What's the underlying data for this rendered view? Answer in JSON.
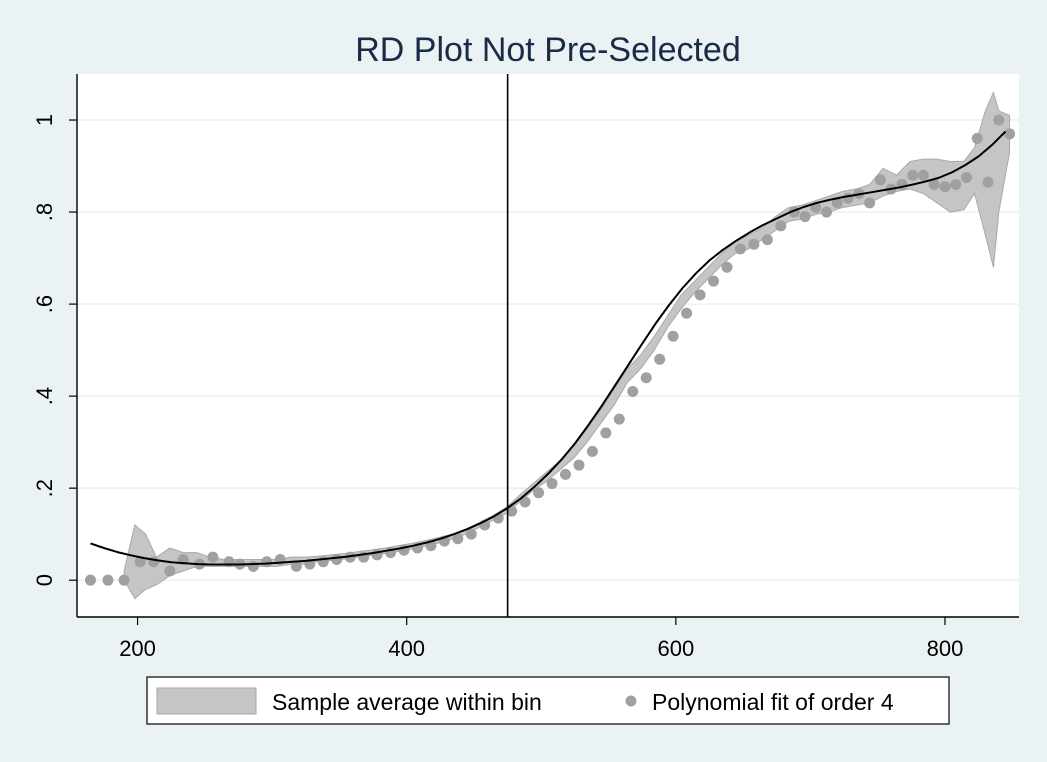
{
  "chart_data": {
    "type": "scatter",
    "title": "RD Plot Not Pre-Selected",
    "xlabel": "",
    "ylabel": "",
    "xlim": [
      155,
      855
    ],
    "ylim": [
      -0.08,
      1.1
    ],
    "x_ticks": [
      200,
      400,
      600,
      800
    ],
    "x_tick_labels": [
      "200",
      "400",
      "600",
      "800"
    ],
    "y_ticks": [
      0,
      0.2,
      0.4,
      0.6,
      0.8,
      1
    ],
    "y_tick_labels": [
      "0",
      ".2",
      ".4",
      ".6",
      ".8",
      "1"
    ],
    "grid": true,
    "cutoff_x": 475,
    "legend": {
      "placement": "bottom",
      "entries": [
        "Sample average within bin",
        "Polynomial fit of order 4"
      ]
    },
    "series": [
      {
        "name": "Sample average within bin",
        "kind": "points",
        "x": [
          165,
          178,
          190,
          202,
          212,
          224,
          234,
          246,
          256,
          268,
          276,
          286,
          296,
          306,
          318,
          328,
          338,
          348,
          358,
          368,
          378,
          388,
          398,
          408,
          418,
          428,
          438,
          448,
          458,
          468,
          478,
          488,
          498,
          508,
          518,
          528,
          538,
          548,
          558,
          568,
          578,
          588,
          598,
          608,
          618,
          628,
          638,
          648,
          658,
          668,
          678,
          688,
          696,
          704,
          712,
          720,
          728,
          736,
          744,
          752,
          760,
          768,
          776,
          784,
          792,
          800,
          808,
          816,
          824,
          832,
          840,
          848
        ],
        "y": [
          0.0,
          0.0,
          0.0,
          0.04,
          0.04,
          0.02,
          0.045,
          0.035,
          0.05,
          0.04,
          0.035,
          0.03,
          0.04,
          0.045,
          0.03,
          0.035,
          0.04,
          0.045,
          0.05,
          0.05,
          0.055,
          0.06,
          0.065,
          0.07,
          0.075,
          0.085,
          0.09,
          0.1,
          0.12,
          0.135,
          0.15,
          0.17,
          0.19,
          0.21,
          0.23,
          0.25,
          0.28,
          0.32,
          0.35,
          0.41,
          0.44,
          0.48,
          0.53,
          0.58,
          0.62,
          0.65,
          0.68,
          0.72,
          0.73,
          0.74,
          0.77,
          0.8,
          0.79,
          0.81,
          0.8,
          0.82,
          0.83,
          0.84,
          0.82,
          0.87,
          0.85,
          0.86,
          0.88,
          0.88,
          0.86,
          0.855,
          0.86,
          0.875,
          0.96,
          0.865,
          1.0,
          0.97
        ]
      },
      {
        "name": "Polynomial fit of order 4",
        "kind": "line",
        "x": [
          165,
          175,
          185,
          195,
          205,
          215,
          225,
          235,
          245,
          255,
          265,
          275,
          285,
          295,
          305,
          315,
          325,
          335,
          345,
          355,
          365,
          375,
          385,
          395,
          405,
          415,
          425,
          435,
          445,
          455,
          465,
          475,
          485,
          495,
          505,
          515,
          525,
          535,
          545,
          555,
          565,
          575,
          585,
          595,
          605,
          615,
          625,
          635,
          645,
          655,
          665,
          675,
          685,
          695,
          705,
          715,
          725,
          735,
          745,
          755,
          765,
          775,
          785,
          795,
          805,
          815,
          825,
          835,
          845
        ],
        "y": [
          0.08,
          0.07,
          0.061,
          0.054,
          0.048,
          0.043,
          0.039,
          0.037,
          0.035,
          0.034,
          0.034,
          0.034,
          0.035,
          0.036,
          0.038,
          0.04,
          0.042,
          0.045,
          0.048,
          0.051,
          0.055,
          0.059,
          0.064,
          0.069,
          0.075,
          0.082,
          0.09,
          0.1,
          0.111,
          0.124,
          0.139,
          0.157,
          0.178,
          0.203,
          0.231,
          0.262,
          0.297,
          0.337,
          0.379,
          0.424,
          0.469,
          0.514,
          0.558,
          0.598,
          0.635,
          0.667,
          0.695,
          0.718,
          0.738,
          0.756,
          0.772,
          0.786,
          0.8,
          0.811,
          0.82,
          0.827,
          0.833,
          0.838,
          0.843,
          0.848,
          0.853,
          0.859,
          0.866,
          0.874,
          0.886,
          0.902,
          0.921,
          0.946,
          0.975
        ]
      },
      {
        "name": "Sample average within bin",
        "kind": "band",
        "x": [
          190,
          198,
          206,
          214,
          224,
          234,
          244,
          254,
          264,
          274,
          284,
          294,
          304,
          314,
          324,
          334,
          344,
          354,
          364,
          374,
          384,
          394,
          404,
          414,
          424,
          434,
          444,
          454,
          464,
          474,
          484,
          494,
          504,
          514,
          524,
          534,
          544,
          554,
          564,
          574,
          584,
          594,
          604,
          614,
          624,
          634,
          644,
          654,
          664,
          674,
          684,
          694,
          704,
          714,
          724,
          734,
          744,
          754,
          764,
          774,
          784,
          794,
          804,
          814,
          822,
          830,
          836,
          840,
          848
        ],
        "lower": [
          0.0,
          -0.04,
          -0.02,
          -0.01,
          0.01,
          0.02,
          0.03,
          0.03,
          0.03,
          0.03,
          0.03,
          0.03,
          0.03,
          0.035,
          0.035,
          0.04,
          0.043,
          0.046,
          0.05,
          0.054,
          0.058,
          0.063,
          0.068,
          0.074,
          0.081,
          0.09,
          0.1,
          0.115,
          0.13,
          0.145,
          0.17,
          0.195,
          0.215,
          0.24,
          0.265,
          0.3,
          0.34,
          0.38,
          0.43,
          0.46,
          0.5,
          0.55,
          0.59,
          0.625,
          0.655,
          0.685,
          0.71,
          0.72,
          0.74,
          0.76,
          0.78,
          0.785,
          0.795,
          0.8,
          0.81,
          0.815,
          0.82,
          0.835,
          0.845,
          0.85,
          0.84,
          0.82,
          0.8,
          0.805,
          0.84,
          0.75,
          0.68,
          0.8,
          0.93
        ],
        "upper": [
          0.02,
          0.12,
          0.1,
          0.05,
          0.07,
          0.06,
          0.06,
          0.05,
          0.045,
          0.045,
          0.045,
          0.045,
          0.045,
          0.05,
          0.05,
          0.052,
          0.055,
          0.058,
          0.062,
          0.066,
          0.07,
          0.075,
          0.08,
          0.086,
          0.093,
          0.1,
          0.11,
          0.125,
          0.14,
          0.158,
          0.185,
          0.21,
          0.235,
          0.26,
          0.29,
          0.33,
          0.37,
          0.415,
          0.46,
          0.49,
          0.53,
          0.575,
          0.62,
          0.65,
          0.68,
          0.71,
          0.735,
          0.75,
          0.765,
          0.79,
          0.81,
          0.815,
          0.825,
          0.835,
          0.845,
          0.85,
          0.86,
          0.895,
          0.88,
          0.91,
          0.915,
          0.915,
          0.91,
          0.91,
          0.94,
          1.02,
          1.06,
          1.02,
          1.01
        ]
      }
    ]
  },
  "colors": {
    "page_background": "#eaf2f3",
    "plot_background": "#ffffff",
    "gridline": "#e4ecee",
    "band_fill": "#c5c5c5",
    "band_stroke": "#a9a9a9",
    "point": "#a0a0a0",
    "fit_line": "#000000",
    "title": "#1a2b47"
  }
}
